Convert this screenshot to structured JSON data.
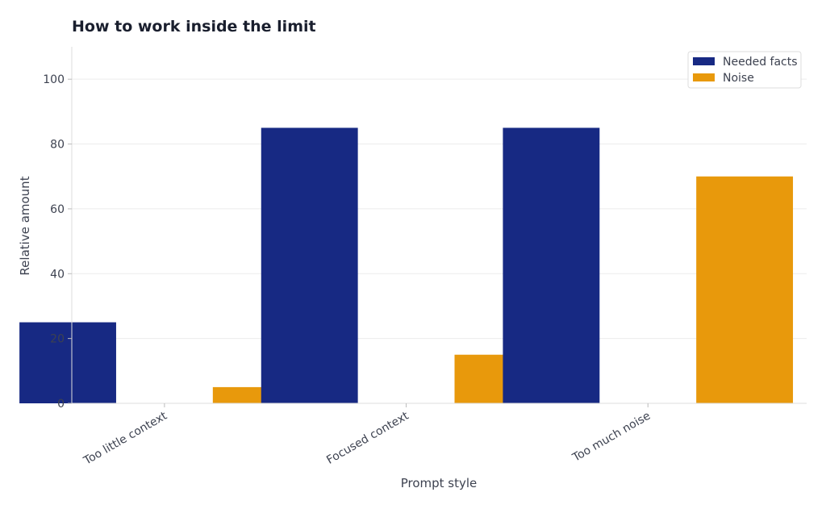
{
  "chart_data": {
    "type": "bar",
    "title": "How to work inside the limit",
    "xlabel": "Prompt style",
    "ylabel": "Relative amount",
    "categories": [
      "Too little context",
      "Focused context",
      "Too much noise"
    ],
    "series": [
      {
        "name": "Needed facts",
        "values": [
          25,
          85,
          85
        ],
        "color": "#172983"
      },
      {
        "name": "Noise",
        "values": [
          5,
          15,
          70
        ],
        "color": "#e8990c"
      }
    ],
    "ylim": [
      0,
      110
    ],
    "yticks": [
      0,
      20,
      40,
      60,
      80,
      100
    ],
    "grid": "horizontal",
    "legend": "top-right"
  }
}
